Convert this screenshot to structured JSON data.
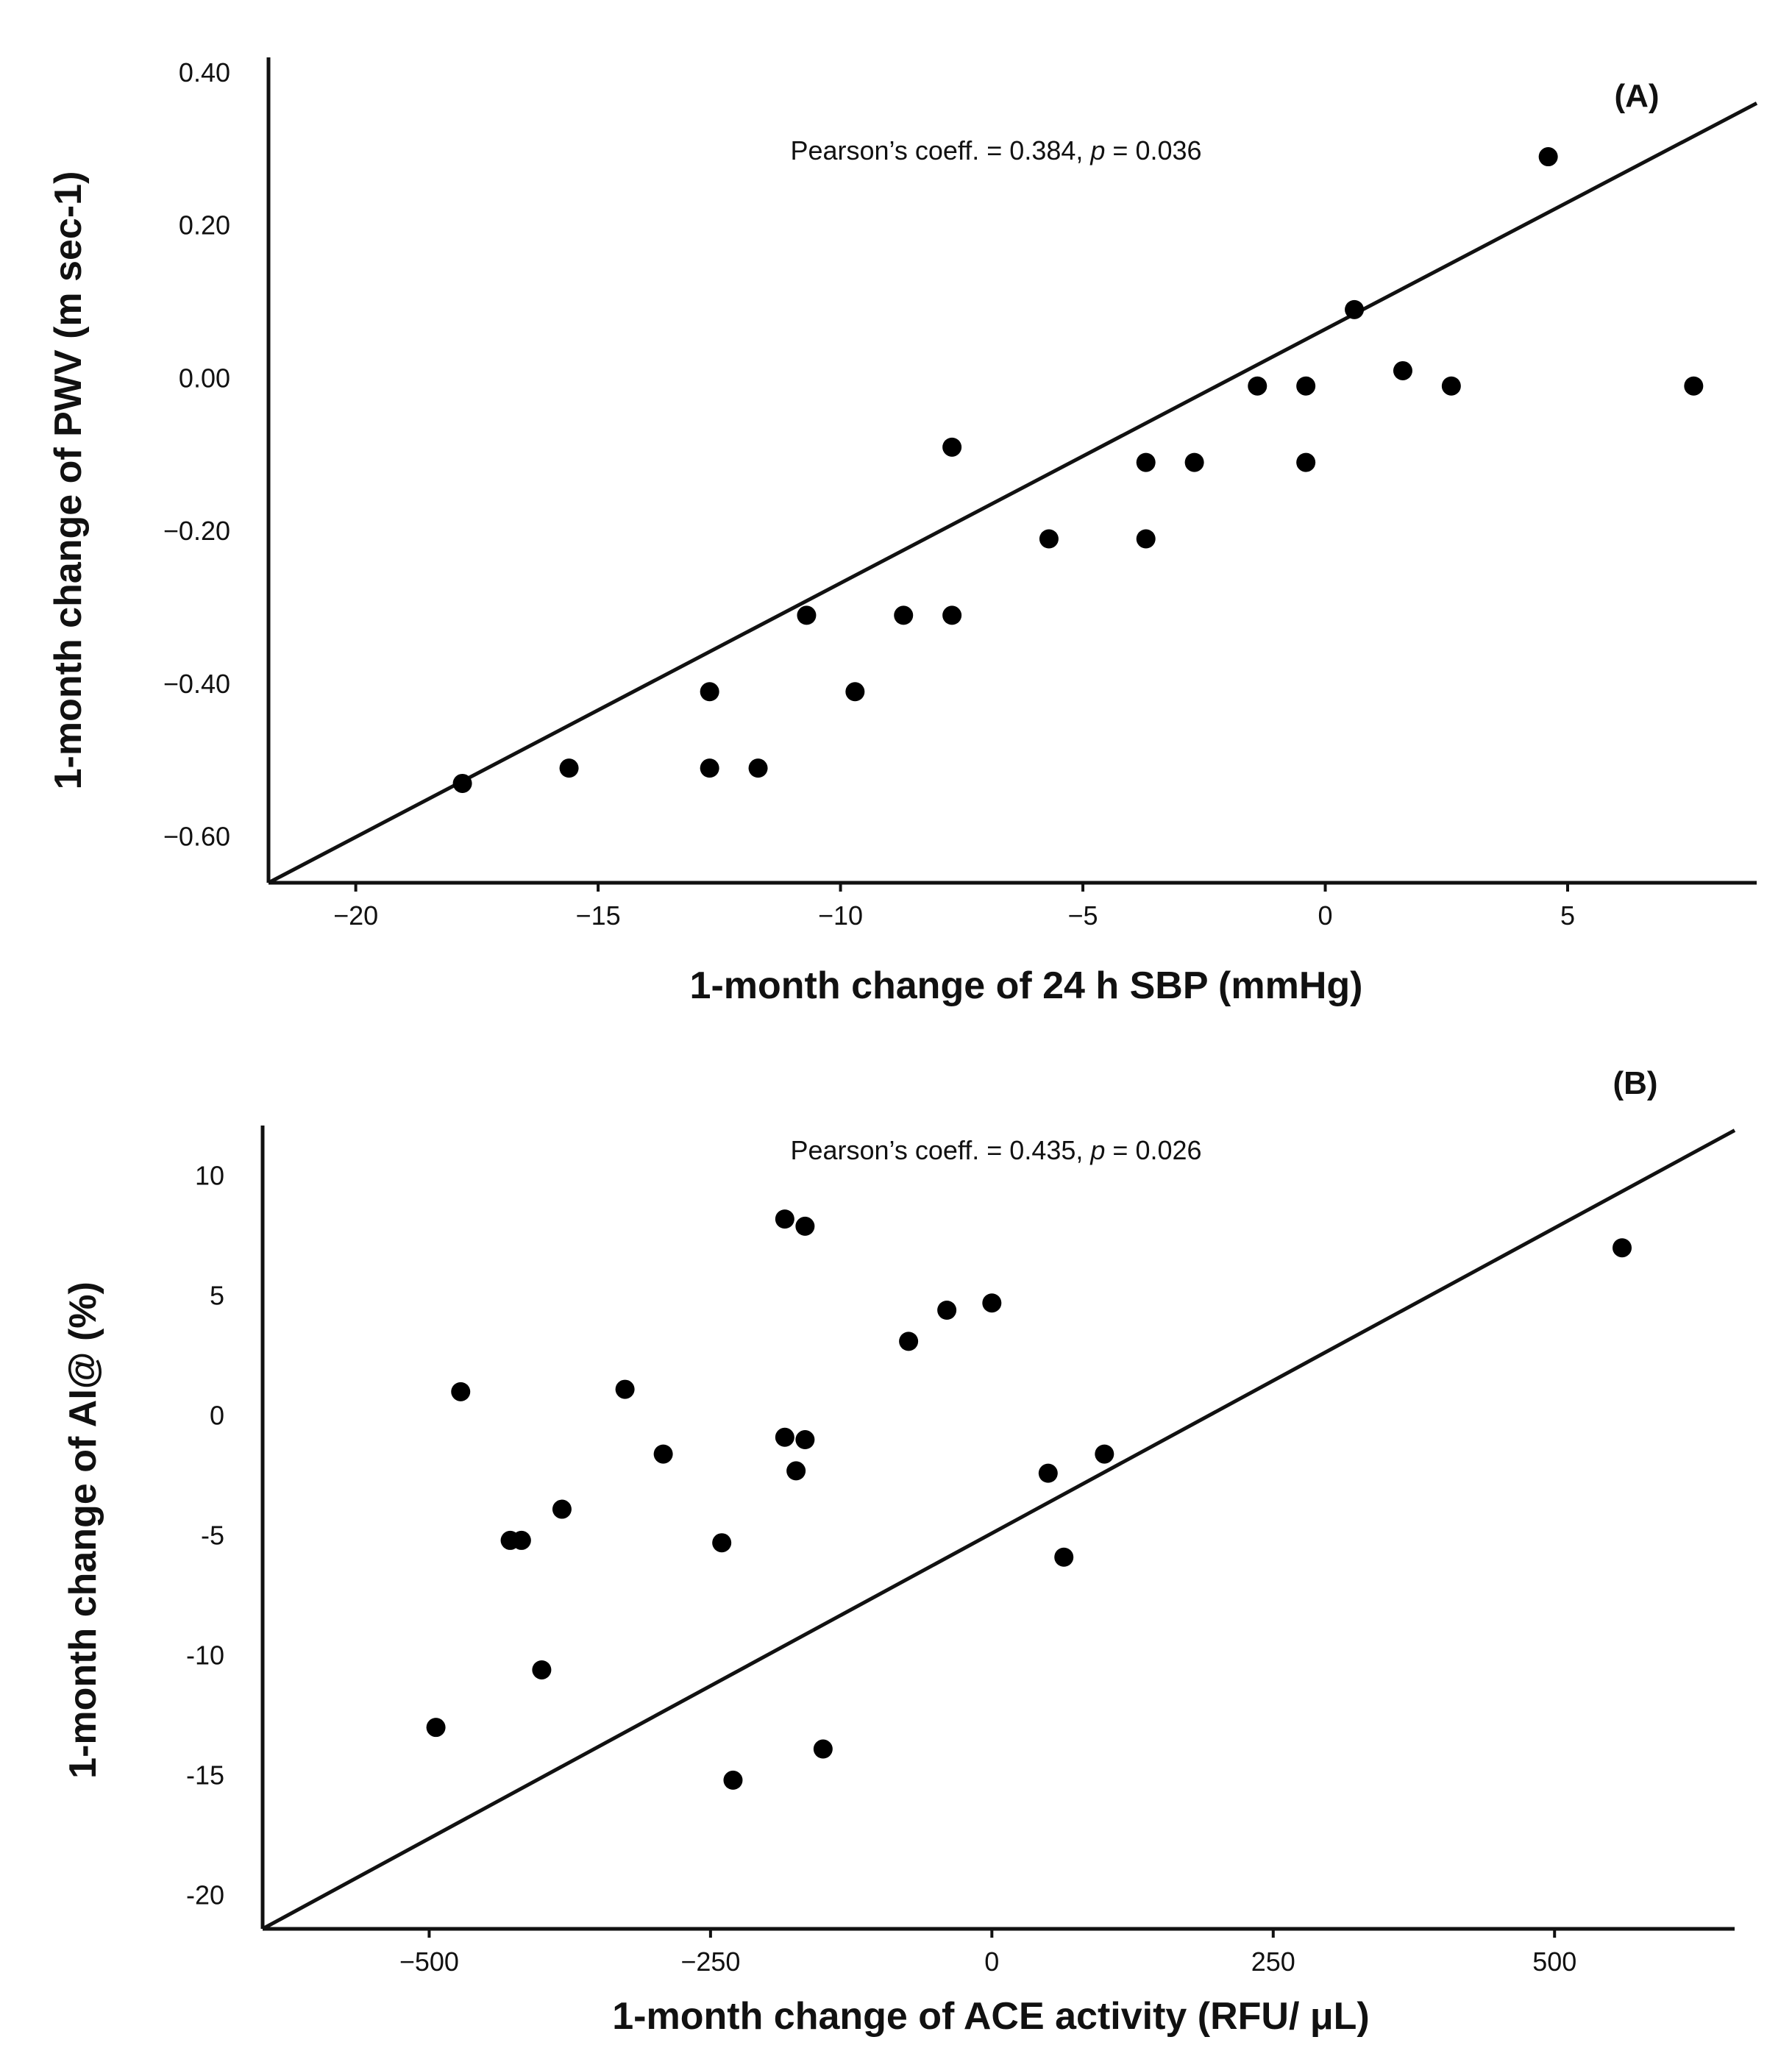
{
  "chart_data": [
    {
      "panel": "(A)",
      "type": "scatter",
      "xlabel": "1-month change of 24 h SBP (mmHg)",
      "ylabel": "1-month change of PWV (m sec-1)",
      "annotation": {
        "prefix": "Pearson’s coeff. = 0.384, ",
        "p_symbol": "p",
        "suffix": " = 0.036"
      },
      "xlim": [
        -21.8,
        8.9
      ],
      "ylim": [
        -0.66,
        0.42
      ],
      "xticks": [
        -20,
        -15,
        -10,
        -5,
        0,
        5
      ],
      "xtick_labels": [
        "−20",
        "−15",
        "−10",
        "−5",
        "0",
        "5"
      ],
      "yticks": [
        0.4,
        0.2,
        0.0,
        -0.2,
        -0.4,
        -0.6
      ],
      "ytick_labels": [
        "0.40",
        "0.20",
        "0.00",
        "−0.20",
        "−0.40",
        "−0.60"
      ],
      "fit_line": {
        "x": [
          -21.8,
          8.9
        ],
        "y": [
          -0.66,
          0.36
        ]
      },
      "points": [
        {
          "x": -17.8,
          "y": -0.53
        },
        {
          "x": -15.6,
          "y": -0.51
        },
        {
          "x": -12.7,
          "y": -0.41
        },
        {
          "x": -12.7,
          "y": -0.51
        },
        {
          "x": -11.7,
          "y": -0.51
        },
        {
          "x": -10.7,
          "y": -0.31
        },
        {
          "x": -9.7,
          "y": -0.41
        },
        {
          "x": -8.7,
          "y": -0.31
        },
        {
          "x": -7.7,
          "y": -0.31
        },
        {
          "x": -7.7,
          "y": -0.09
        },
        {
          "x": -5.7,
          "y": -0.21
        },
        {
          "x": -3.7,
          "y": -0.21
        },
        {
          "x": -3.7,
          "y": -0.11
        },
        {
          "x": -2.7,
          "y": -0.11
        },
        {
          "x": -1.4,
          "y": -0.01
        },
        {
          "x": -0.4,
          "y": -0.01
        },
        {
          "x": -0.4,
          "y": -0.11
        },
        {
          "x": 0.6,
          "y": 0.09
        },
        {
          "x": 1.6,
          "y": 0.01
        },
        {
          "x": 2.6,
          "y": -0.01
        },
        {
          "x": 4.6,
          "y": 0.29
        },
        {
          "x": 7.6,
          "y": -0.01
        }
      ]
    },
    {
      "panel": "(B)",
      "type": "scatter",
      "xlabel": "1-month change of ACE activity (RFU/ μL)",
      "ylabel": "1-month change of AI@ (%)",
      "annotation": {
        "prefix": "Pearson’s coeff. = 0.435, ",
        "p_symbol": "p",
        "suffix": " = 0.026"
      },
      "xlim": [
        -648,
        660
      ],
      "ylim": [
        -21.4,
        12.1
      ],
      "xticks": [
        -500,
        -250,
        0,
        250,
        500
      ],
      "xtick_labels": [
        "−500",
        "−250",
        "0",
        "250",
        "500"
      ],
      "yticks": [
        10,
        5,
        0,
        -5,
        -10,
        -15,
        -20
      ],
      "ytick_labels": [
        "10",
        "5",
        "0",
        "-5",
        "-10",
        "-15",
        "-20"
      ],
      "fit_line": {
        "x": [
          -648,
          660
        ],
        "y": [
          -21.4,
          11.9
        ]
      },
      "points": [
        {
          "x": -472,
          "y": 1.0
        },
        {
          "x": -494,
          "y": -13.0
        },
        {
          "x": -428,
          "y": -5.2
        },
        {
          "x": -418,
          "y": -5.2
        },
        {
          "x": -400,
          "y": -10.6
        },
        {
          "x": -382,
          "y": -3.9
        },
        {
          "x": -326,
          "y": 1.1
        },
        {
          "x": -292,
          "y": -1.6
        },
        {
          "x": -240,
          "y": -5.3
        },
        {
          "x": -230,
          "y": -15.2
        },
        {
          "x": -184,
          "y": 8.2
        },
        {
          "x": -184,
          "y": -0.9
        },
        {
          "x": -174,
          "y": -2.3
        },
        {
          "x": -166,
          "y": 7.9
        },
        {
          "x": -166,
          "y": -1.0
        },
        {
          "x": -150,
          "y": -13.9
        },
        {
          "x": -74,
          "y": 3.1
        },
        {
          "x": -40,
          "y": 4.4
        },
        {
          "x": 0,
          "y": 4.7
        },
        {
          "x": 50,
          "y": -2.4
        },
        {
          "x": 64,
          "y": -5.9
        },
        {
          "x": 100,
          "y": -1.6
        },
        {
          "x": 560,
          "y": 7.0
        }
      ]
    }
  ]
}
